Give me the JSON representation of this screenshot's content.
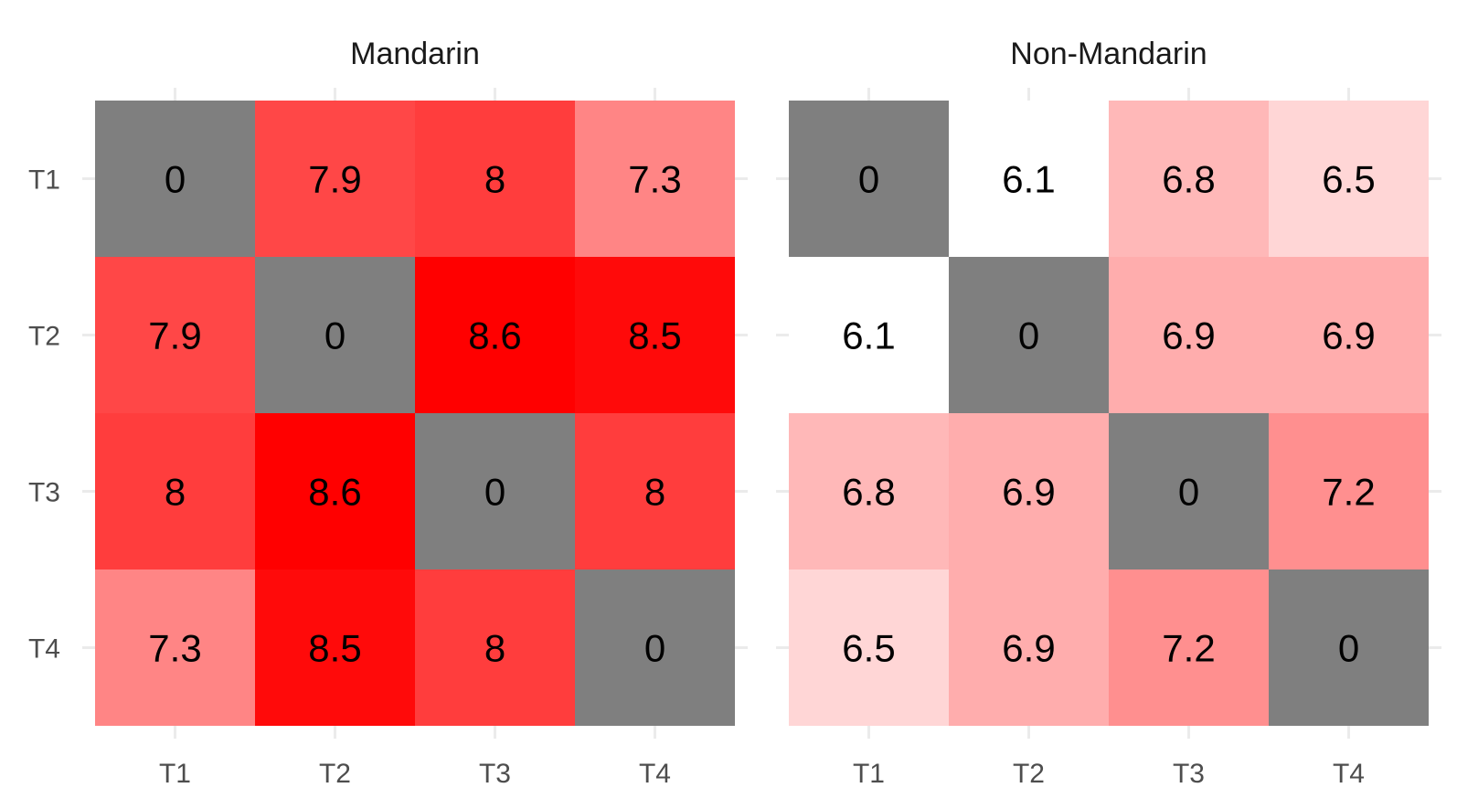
{
  "chart_data": {
    "type": "heatmap",
    "x_categories": [
      "T1",
      "T2",
      "T3",
      "T4"
    ],
    "y_categories": [
      "T1",
      "T2",
      "T3",
      "T4"
    ],
    "diagonal_color": "#7f7f7f",
    "color_scale": {
      "low": "#ffffff",
      "high": "#ff0000",
      "min": 6.1,
      "max": 8.6
    },
    "panels": [
      {
        "title": "Mandarin",
        "values": [
          [
            0,
            7.9,
            8,
            7.3
          ],
          [
            7.9,
            0,
            8.6,
            8.5
          ],
          [
            8,
            8.6,
            0,
            8
          ],
          [
            7.3,
            8.5,
            8,
            0
          ]
        ]
      },
      {
        "title": "Non-Mandarin",
        "values": [
          [
            0,
            6.1,
            6.8,
            6.5
          ],
          [
            6.1,
            0,
            6.9,
            6.9
          ],
          [
            6.8,
            6.9,
            0,
            7.2
          ],
          [
            6.5,
            6.9,
            7.2,
            0
          ]
        ]
      }
    ]
  }
}
